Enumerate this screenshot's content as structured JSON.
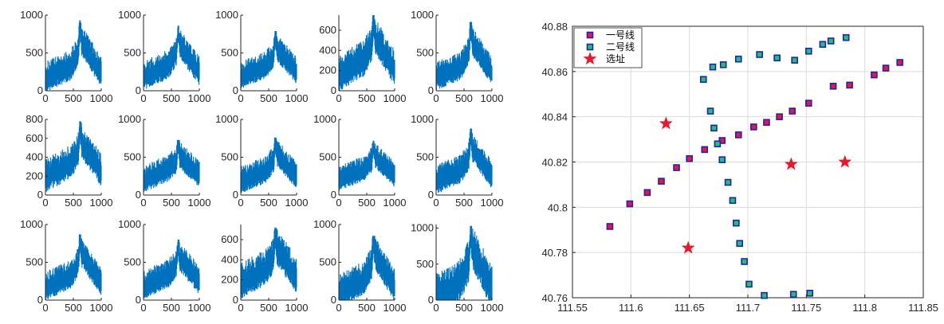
{
  "chart_data": [
    {
      "type": "line",
      "panel": "small-multiples",
      "rows": 3,
      "cols": 5,
      "xlim": [
        0,
        1000
      ],
      "x_ticks": [
        0,
        500,
        1000
      ],
      "series_color": "#0072BD",
      "panels": [
        {
          "ylim": [
            0,
            1000
          ],
          "yticks": [
            0,
            500,
            1000
          ],
          "peak": 930,
          "base": 150,
          "mid": 370,
          "spread": 160
        },
        {
          "ylim": [
            0,
            1000
          ],
          "yticks": [
            0,
            500,
            1000
          ],
          "peak": 860,
          "base": 170,
          "mid": 380,
          "spread": 150
        },
        {
          "ylim": [
            0,
            1000
          ],
          "yticks": [
            0,
            500,
            1000
          ],
          "peak": 790,
          "base": 180,
          "mid": 370,
          "spread": 140
        },
        {
          "ylim": [
            0,
            750
          ],
          "yticks": [
            0,
            200,
            400,
            600
          ],
          "peak": 750,
          "base": 140,
          "mid": 360,
          "spread": 140
        },
        {
          "ylim": [
            0,
            1000
          ],
          "yticks": [
            0,
            500,
            1000
          ],
          "peak": 910,
          "base": 170,
          "mid": 360,
          "spread": 150
        },
        {
          "ylim": [
            0,
            800
          ],
          "yticks": [
            0,
            200,
            400,
            600,
            800
          ],
          "peak": 780,
          "base": 180,
          "mid": 380,
          "spread": 140
        },
        {
          "ylim": [
            0,
            1000
          ],
          "yticks": [
            0,
            500,
            1000
          ],
          "peak": 730,
          "base": 190,
          "mid": 380,
          "spread": 140
        },
        {
          "ylim": [
            0,
            1000
          ],
          "yticks": [
            0,
            500,
            1000
          ],
          "peak": 760,
          "base": 170,
          "mid": 370,
          "spread": 140
        },
        {
          "ylim": [
            0,
            1000
          ],
          "yticks": [
            0,
            500,
            1000
          ],
          "peak": 720,
          "base": 190,
          "mid": 380,
          "spread": 130
        },
        {
          "ylim": [
            0,
            1000
          ],
          "yticks": [
            0,
            500,
            1000
          ],
          "peak": 880,
          "base": 170,
          "mid": 380,
          "spread": 150
        },
        {
          "ylim": [
            0,
            1000
          ],
          "yticks": [
            0,
            500,
            1000
          ],
          "peak": 870,
          "base": 160,
          "mid": 370,
          "spread": 150
        },
        {
          "ylim": [
            0,
            1000
          ],
          "yticks": [
            0,
            500,
            1000
          ],
          "peak": 800,
          "base": 170,
          "mid": 380,
          "spread": 150
        },
        {
          "ylim": [
            0,
            750
          ],
          "yticks": [
            0,
            200,
            400,
            600
          ],
          "peak": 720,
          "base": 160,
          "mid": 360,
          "spread": 140
        },
        {
          "ylim": [
            0,
            1000
          ],
          "yticks": [
            0,
            500,
            1000
          ],
          "peak": 850,
          "base": 100,
          "mid": 320,
          "spread": 170
        },
        {
          "ylim": [
            0,
            1050
          ],
          "yticks": [
            0,
            500,
            1000
          ],
          "peak": 1030,
          "base": 30,
          "mid": 330,
          "spread": 230
        }
      ]
    },
    {
      "type": "scatter",
      "panel": "main",
      "xlim": [
        111.55,
        111.85
      ],
      "ylim": [
        40.76,
        40.88
      ],
      "x_ticks": [
        "111.55",
        "111.6",
        "111.65",
        "111.7",
        "111.75",
        "111.8",
        "111.85"
      ],
      "y_ticks": [
        "40.76",
        "40.78",
        "40.8",
        "40.82",
        "40.84",
        "40.86",
        "40.88"
      ],
      "grid": true,
      "legend_position": "top-left",
      "series": [
        {
          "name": "一号线",
          "marker": "square",
          "face_color": "#e8192c",
          "edge_color": "#1f1fc8",
          "x": [
            111.582,
            111.599,
            111.614,
            111.626,
            111.639,
            111.65,
            111.663,
            111.678,
            111.692,
            111.705,
            111.716,
            111.727,
            111.738,
            111.752,
            111.773,
            111.787,
            111.808,
            111.818,
            111.83
          ],
          "y": [
            40.7915,
            40.8015,
            40.8065,
            40.8115,
            40.8175,
            40.8215,
            40.8255,
            40.8295,
            40.832,
            40.8355,
            40.8375,
            40.84,
            40.8425,
            40.846,
            40.8535,
            40.854,
            40.8585,
            40.8615,
            40.864
          ]
        },
        {
          "name": "二号线",
          "marker": "square",
          "face_color": "#22c45e",
          "edge_color": "#1f1fc8",
          "x": [
            111.662,
            111.67,
            111.679,
            111.692,
            111.71,
            111.725,
            111.74,
            111.752,
            111.764,
            111.771,
            111.784,
            111.668,
            111.671,
            111.674,
            111.678,
            111.683,
            111.687,
            111.69,
            111.693,
            111.697,
            111.701,
            111.714,
            111.739,
            111.753
          ],
          "y": [
            40.8565,
            40.862,
            40.863,
            40.8655,
            40.8675,
            40.866,
            40.865,
            40.869,
            40.872,
            40.8735,
            40.875,
            40.8425,
            40.835,
            40.828,
            40.821,
            40.811,
            40.803,
            40.793,
            40.784,
            40.776,
            40.766,
            40.761,
            40.7615,
            40.762
          ]
        },
        {
          "name": "选址",
          "marker": "star",
          "face_color": "#e8192c",
          "edge_color": "#e8192c",
          "x": [
            111.63,
            111.737,
            111.783,
            111.649
          ],
          "y": [
            40.837,
            40.819,
            40.82,
            40.782
          ]
        }
      ]
    }
  ]
}
